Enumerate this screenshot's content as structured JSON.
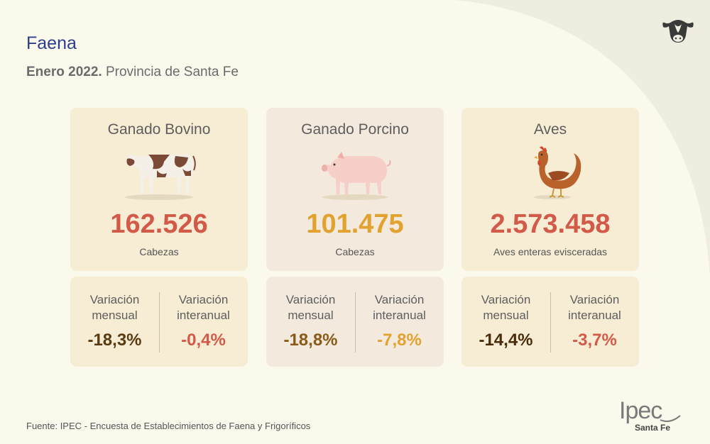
{
  "header": {
    "title": "Faena",
    "subtitle_bold": "Enero 2022.",
    "subtitle_rest": " Provincia de Santa Fe"
  },
  "cards": [
    {
      "name": "Ganado Bovino",
      "icon": "cow-icon",
      "value": "162.526",
      "unit": "Cabezas",
      "var_left_label_1": "Variación",
      "var_left_label_2": "mensual",
      "var_left_value": "-18,3%",
      "var_right_label_1": "Variación",
      "var_right_label_2": "interanual",
      "var_right_value": "-0,4%",
      "value_color": "#d25a48",
      "left_color": "#5a3a10",
      "right_color": "#d25a48"
    },
    {
      "name": "Ganado Porcino",
      "icon": "pig-icon",
      "value": "101.475",
      "unit": "Cabezas",
      "var_left_label_1": "Variación",
      "var_left_label_2": "mensual",
      "var_left_value": "-18,8%",
      "var_right_label_1": "Variación",
      "var_right_label_2": "interanual",
      "var_right_value": "-7,8%",
      "value_color": "#e2a230",
      "left_color": "#8a5a18",
      "right_color": "#e2a230"
    },
    {
      "name": "Aves",
      "icon": "chicken-icon",
      "value": "2.573.458",
      "unit": "Aves enteras evisceradas",
      "var_left_label_1": "Variación",
      "var_left_label_2": "mensual",
      "var_left_value": "-14,4%",
      "var_right_label_1": "Variación",
      "var_right_label_2": "interanual",
      "var_right_value": "-3,7%",
      "value_color": "#d25a48",
      "left_color": "#4a2c0c",
      "right_color": "#d25a48"
    }
  ],
  "footer": {
    "source": "Fuente: IPEC - Encuesta de Establecimientos de Faena y Frigoríficos",
    "logo_main": "Ipec",
    "logo_sub": "Santa Fe"
  },
  "colors": {
    "background": "#fbf8ec",
    "card_bovino": "#f7ecd4",
    "card_porcino": "#f3e9dd",
    "card_aves": "#f7ecd4",
    "title": "#2c3f8f"
  }
}
